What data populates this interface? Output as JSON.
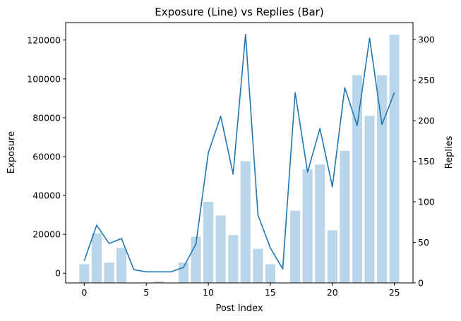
{
  "chart_data": {
    "type": "bar+line",
    "title": "Exposure (Line) vs Replies (Bar)",
    "xlabel": "Post Index",
    "ylabel_left": "Exposure",
    "ylabel_right": "Replies",
    "x": [
      0,
      1,
      2,
      3,
      4,
      5,
      6,
      7,
      8,
      9,
      10,
      11,
      12,
      13,
      14,
      15,
      16,
      17,
      18,
      19,
      20,
      21,
      22,
      23,
      24,
      25
    ],
    "xlim": [
      -1.5,
      26.5
    ],
    "xticks": [
      0,
      5,
      10,
      15,
      20,
      25
    ],
    "ylim_left": [
      -5000,
      129000
    ],
    "yticks_left": [
      0,
      20000,
      40000,
      60000,
      80000,
      100000,
      120000
    ],
    "ylim_right": [
      0,
      321
    ],
    "yticks_right": [
      0,
      50,
      100,
      150,
      200,
      250,
      300
    ],
    "grid": false,
    "series": [
      {
        "name": "Exposure",
        "kind": "line",
        "axis": "left",
        "color": "#1f77b4",
        "values": [
          6400,
          24700,
          15300,
          17800,
          1800,
          700,
          700,
          700,
          3000,
          15000,
          62000,
          80800,
          51000,
          123000,
          30000,
          13000,
          2200,
          93000,
          52000,
          74500,
          44500,
          95500,
          76000,
          121000,
          76500,
          93000
        ]
      },
      {
        "name": "Replies",
        "kind": "bar",
        "axis": "right",
        "color": "#bad6ea",
        "values": [
          23,
          61,
          25,
          43,
          0,
          0,
          2,
          0,
          25,
          57,
          100,
          83,
          59,
          150,
          42,
          23,
          0,
          89,
          140,
          146,
          65,
          163,
          256,
          206,
          256,
          306
        ]
      }
    ]
  }
}
